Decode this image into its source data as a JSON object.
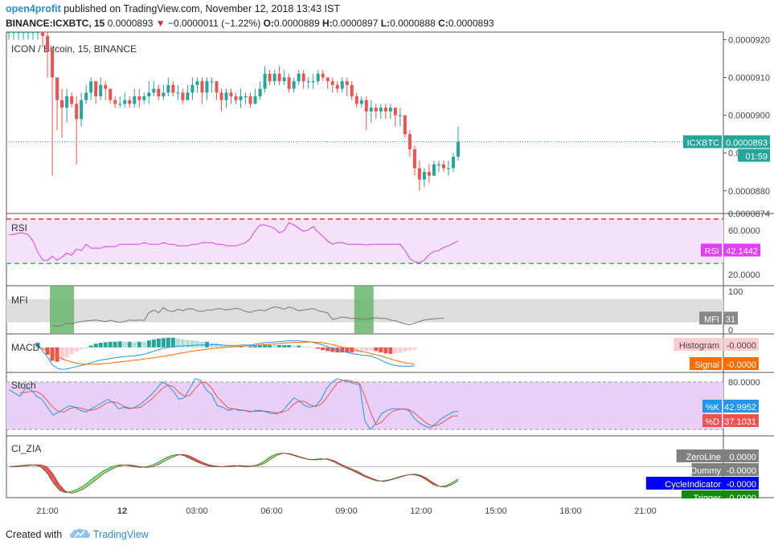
{
  "header": {
    "username": "open4profit",
    "published_text": "published on TradingView.com, November 12, 2018 13:43 IST",
    "symbol_line": "BINANCE:ICXBTC, 15",
    "price": "0.0000893",
    "arrow": "▼",
    "change": "−0.0000011 (−1.22%)",
    "o_label": "O:",
    "o_value": "0.0000889",
    "h_label": "H:",
    "h_value": "0.0000897",
    "l_label": "L:",
    "l_value": "0.0000888",
    "c_label": "C:",
    "c_value": "0.0000893"
  },
  "footer": {
    "created_with": "Created with",
    "brand": "TradingView"
  },
  "colors": {
    "up": "#26a69a",
    "down": "#ef5350",
    "rsi_line": "#e040fb",
    "rsi_band": "#f5e3fa",
    "mfi_band": "#dddddd",
    "mfi_highlight": "#6ab56a",
    "macd_line": "#2196f3",
    "signal_line": "#ff6d00",
    "stoch_k": "#2196f3",
    "stoch_d": "#ef5350",
    "stoch_band": "#ead0f7",
    "cycle_green": "#7ef07e",
    "cycle_red": "#ef5350"
  },
  "chart_data": [
    {
      "type": "candlestick",
      "title": "ICON / Bitcoin, 15, BINANCE",
      "ylim": [
        8.74e-05,
        9.22e-05
      ],
      "y_ticks": [
        "0.0000920",
        "0.0000910",
        "0.0000900",
        "0.0000890",
        "0.0000880",
        "0.0000874"
      ],
      "last_price_label": "ICXBTC",
      "last_price_value": "0.0000893",
      "countdown": "01:59",
      "x_ticks": [
        "21:00",
        "12",
        "03:00",
        "06:00",
        "09:00",
        "12:00",
        "15:00",
        "18:00",
        "21:00"
      ],
      "closes": [
        9.22e-05,
        9.22e-05,
        9.22e-05,
        9.22e-05,
        9.22e-05,
        9.22e-05,
        9.22e-05,
        9.21e-05,
        9.17e-05,
        9.1e-05,
        9.04e-05,
        9.02e-05,
        9.05e-05,
        9.03e-05,
        8.99e-05,
        9.04e-05,
        9.06e-05,
        9.09e-05,
        9.05e-05,
        9.08e-05,
        9.07e-05,
        9.04e-05,
        9.03e-05,
        9.03e-05,
        9.04e-05,
        9.03e-05,
        9.05e-05,
        9.04e-05,
        9.05e-05,
        9.06e-05,
        9.07e-05,
        9.05e-05,
        9.06e-05,
        9.08e-05,
        9.06e-05,
        9.06e-05,
        9.04e-05,
        9.06e-05,
        9.08e-05,
        9.09e-05,
        9.06e-05,
        9.09e-05,
        9.09e-05,
        9.06e-05,
        9.04e-05,
        9.06e-05,
        9.05e-05,
        9.04e-05,
        9.05e-05,
        9.05e-05,
        9.03e-05,
        9.05e-05,
        9.07e-05,
        9.11e-05,
        9.09e-05,
        9.11e-05,
        9.09e-05,
        9.1e-05,
        9.07e-05,
        9.09e-05,
        9.11e-05,
        9.09e-05,
        9.09e-05,
        9.09e-05,
        9.11e-05,
        9.1e-05,
        9.09e-05,
        9.08e-05,
        9.07e-05,
        9.09e-05,
        9.08e-05,
        9.05e-05,
        9.03e-05,
        9.04e-05,
        9.01e-05,
        9.02e-05,
        9.01e-05,
        9.02e-05,
        9.01e-05,
        9.02e-05,
        9e-05,
        9e-05,
        8.95e-05,
        8.91e-05,
        8.86e-05,
        8.83e-05,
        8.85e-05,
        8.84e-05,
        8.87e-05,
        8.87e-05,
        8.86e-05,
        8.86e-05,
        8.89e-05,
        8.93e-05
      ],
      "highs": [
        9.22e-05,
        9.22e-05,
        9.22e-05,
        9.22e-05,
        9.22e-05,
        9.22e-05,
        9.22e-05,
        9.22e-05,
        9.22e-05,
        9.18e-05,
        9.06e-05,
        9.07e-05,
        9.07e-05,
        9.06e-05,
        9.05e-05,
        9.06e-05,
        9.08e-05,
        9.1e-05,
        9.09e-05,
        9.1e-05,
        9.09e-05,
        9.07e-05,
        9.05e-05,
        9.05e-05,
        9.06e-05,
        9.05e-05,
        9.07e-05,
        9.07e-05,
        9.06e-05,
        9.09e-05,
        9.09e-05,
        9.08e-05,
        9.08e-05,
        9.1e-05,
        9.09e-05,
        9.08e-05,
        9.07e-05,
        9.08e-05,
        9.1e-05,
        9.1e-05,
        9.1e-05,
        9.1e-05,
        9.1e-05,
        9.09e-05,
        9.07e-05,
        9.07e-05,
        9.07e-05,
        9.06e-05,
        9.07e-05,
        9.06e-05,
        9.06e-05,
        9.07e-05,
        9.09e-05,
        9.13e-05,
        9.12e-05,
        9.12e-05,
        9.13e-05,
        9.12e-05,
        9.11e-05,
        9.1e-05,
        9.12e-05,
        9.12e-05,
        9.1e-05,
        9.11e-05,
        9.12e-05,
        9.12e-05,
        9.1e-05,
        9.1e-05,
        9.09e-05,
        9.1e-05,
        9.1e-05,
        9.09e-05,
        9.06e-05,
        9.05e-05,
        9.05e-05,
        9.04e-05,
        9.03e-05,
        9.03e-05,
        9.03e-05,
        9.03e-05,
        9.02e-05,
        9.02e-05,
        9e-05,
        8.96e-05,
        8.92e-05,
        8.88e-05,
        8.86e-05,
        8.87e-05,
        8.88e-05,
        8.88e-05,
        8.88e-05,
        8.88e-05,
        8.9e-05,
        8.97e-05
      ],
      "lows": [
        9.2e-05,
        9.2e-05,
        9.2e-05,
        9.2e-05,
        9.2e-05,
        9.2e-05,
        9.2e-05,
        9.18e-05,
        9.1e-05,
        8.84e-05,
        8.96e-05,
        8.94e-05,
        8.98e-05,
        9.02e-05,
        8.87e-05,
        8.97e-05,
        9.03e-05,
        9.04e-05,
        9.03e-05,
        9.04e-05,
        9.04e-05,
        9.03e-05,
        9.02e-05,
        9.02e-05,
        9.02e-05,
        9.02e-05,
        9.02e-05,
        9.02e-05,
        9.03e-05,
        9.03e-05,
        9.05e-05,
        9.04e-05,
        9.04e-05,
        9.05e-05,
        9.05e-05,
        9.04e-05,
        9.03e-05,
        9.04e-05,
        9.04e-05,
        9.06e-05,
        9.03e-05,
        9.04e-05,
        9.06e-05,
        9.04e-05,
        9.01e-05,
        9.02e-05,
        9.03e-05,
        9.03e-05,
        9.02e-05,
        9.03e-05,
        9.02e-05,
        9.03e-05,
        9.04e-05,
        9.06e-05,
        9.08e-05,
        9.08e-05,
        9.08e-05,
        9.08e-05,
        9.06e-05,
        9.06e-05,
        9.08e-05,
        9.07e-05,
        9.07e-05,
        9.07e-05,
        9.08e-05,
        9.09e-05,
        9.07e-05,
        9.06e-05,
        9.06e-05,
        9.06e-05,
        9.05e-05,
        9.04e-05,
        9.02e-05,
        9.02e-05,
        8.96e-05,
        8.98e-05,
        8.99e-05,
        8.99e-05,
        8.99e-05,
        8.99e-05,
        8.97e-05,
        8.97e-05,
        8.94e-05,
        8.89e-05,
        8.84e-05,
        8.8e-05,
        8.81e-05,
        8.82e-05,
        8.84e-05,
        8.85e-05,
        8.85e-05,
        8.84e-05,
        8.85e-05,
        8.88e-05
      ]
    },
    {
      "type": "line",
      "name": "RSI",
      "label": "RSI",
      "value_label": "42.1442",
      "ylim": [
        10,
        75
      ],
      "y_ticks": [
        "60.0000",
        "20.0000"
      ],
      "overbought": 70,
      "oversold": 30,
      "values": [
        50,
        50,
        52,
        52,
        50,
        42,
        28,
        18,
        18,
        23,
        18,
        22,
        27,
        24,
        32,
        30,
        38,
        33,
        33,
        33,
        35,
        35,
        35,
        38,
        38,
        38,
        38,
        38,
        40,
        38,
        38,
        38,
        40,
        38,
        38,
        36,
        36,
        36,
        38,
        38,
        40,
        40,
        40,
        38,
        38,
        36,
        36,
        36,
        38,
        40,
        45,
        55,
        62,
        62,
        60,
        58,
        52,
        55,
        65,
        62,
        58,
        54,
        56,
        60,
        53,
        48,
        42,
        38,
        40,
        40,
        38,
        38,
        38,
        38,
        37,
        38,
        38,
        38,
        38,
        38,
        38,
        38,
        30,
        20,
        16,
        15,
        18,
        25,
        29,
        30,
        34,
        36,
        39,
        42
      ]
    },
    {
      "type": "line",
      "name": "MFI",
      "label": "MFI",
      "value_label": "31",
      "ylim": [
        -10,
        115
      ],
      "y_ticks": [
        "100",
        "0"
      ],
      "band": [
        20,
        80
      ],
      "highlight_ranges": [
        [
          9,
          13
        ],
        [
          72,
          75
        ]
      ],
      "values": [
        null,
        null,
        null,
        null,
        null,
        null,
        null,
        null,
        null,
        12,
        10,
        12,
        18,
        16,
        20,
        22,
        24,
        25,
        26,
        24,
        22,
        25,
        22,
        20,
        22,
        26,
        25,
        26,
        25,
        45,
        52,
        45,
        58,
        50,
        48,
        54,
        50,
        55,
        55,
        50,
        48,
        52,
        52,
        55,
        55,
        52,
        54,
        56,
        54,
        48,
        46,
        50,
        52,
        50,
        56,
        60,
        58,
        54,
        60,
        56,
        50,
        52,
        54,
        56,
        50,
        48,
        44,
        28,
        30,
        34,
        32,
        30,
        30,
        28,
        28,
        30,
        32,
        30,
        30,
        26,
        24,
        20,
        16,
        14,
        18,
        22,
        26,
        28,
        29,
        30,
        31
      ],
      "_sparse_note": ""
    },
    {
      "type": "bar-line",
      "name": "MACD",
      "label": "MACD",
      "ylim": [
        -6.5,
        3.5
      ],
      "histogram_label": "Histogram",
      "histogram_value": "-0.0000",
      "signal_label": "Signal",
      "signal_value": "-0.0000",
      "macd": [
        null,
        null,
        null,
        null,
        null,
        null,
        1,
        -1,
        -2.5,
        -4.5,
        -5.4,
        -5.7,
        -5.6,
        -5.3,
        -5.0,
        -4.7,
        -4.4,
        -4.0,
        -3.6,
        -3.3,
        -3.1,
        -2.9,
        -2.7,
        -2.5,
        -2.4,
        -2.3,
        -2.2,
        -2.0,
        -1.8,
        -1.4,
        -1.0,
        -0.6,
        -0.3,
        0.0,
        0.2,
        0.3,
        0.4,
        0.4,
        0.5,
        0.6,
        0.6,
        0.7,
        0.7,
        0.7,
        0.6,
        0.5,
        0.5,
        0.5,
        0.6,
        0.6,
        0.6,
        0.8,
        1.0,
        1.2,
        1.3,
        1.4,
        1.5,
        1.6,
        1.7,
        1.7,
        1.7,
        1.6,
        1.5,
        1.3,
        1.0,
        0.6,
        0.2,
        -0.3,
        -0.7,
        -1.0,
        -1.3,
        -1.6,
        -1.8,
        -2.0,
        -2.1,
        -2.3,
        -2.7,
        -3.3,
        -3.9,
        -4.4,
        -4.7,
        -4.9,
        -4.9,
        -4.9,
        -4.8
      ],
      "signal": [
        null,
        null,
        null,
        null,
        null,
        null,
        0,
        -0.3,
        -0.9,
        -1.6,
        -2.3,
        -2.9,
        -3.4,
        -3.8,
        -4.1,
        -4.3,
        -4.4,
        -4.4,
        -4.4,
        -4.3,
        -4.2,
        -4.1,
        -3.9,
        -3.8,
        -3.6,
        -3.5,
        -3.3,
        -3.2,
        -3.0,
        -2.9,
        -2.7,
        -2.5,
        -2.3,
        -2.1,
        -1.9,
        -1.6,
        -1.4,
        -1.2,
        -1.0,
        -0.8,
        -0.6,
        -0.5,
        -0.3,
        -0.2,
        -0.1,
        0.0,
        0.1,
        0.2,
        0.3,
        0.4,
        0.4,
        0.5,
        0.6,
        0.7,
        0.8,
        0.9,
        1.0,
        1.1,
        1.2,
        1.3,
        1.3,
        1.4,
        1.4,
        1.4,
        1.3,
        1.2,
        1.0,
        0.7,
        0.4,
        0.1,
        -0.2,
        -0.5,
        -0.8,
        -1.1,
        -1.3,
        -1.6,
        -1.9,
        -2.2,
        -2.6,
        -3.0,
        -3.4,
        -3.7,
        -4.0,
        -4.2,
        -4.3
      ]
    },
    {
      "type": "line",
      "name": "Stoch",
      "label": "Stoch",
      "ylim": [
        12,
        92
      ],
      "y_ticks": [
        "80.0000"
      ],
      "upper": 80,
      "lower": 20,
      "k_label": "%K",
      "k_value": "42.9952",
      "d_label": "%D",
      "d_value": "37.1031",
      "k": [
        70,
        66,
        62,
        72,
        70,
        62,
        58,
        48,
        38,
        42,
        46,
        50,
        48,
        44,
        42,
        46,
        50,
        54,
        58,
        54,
        46,
        48,
        46,
        48,
        52,
        58,
        64,
        72,
        80,
        76,
        68,
        58,
        60,
        72,
        84,
        82,
        70,
        64,
        50,
        48,
        44,
        46,
        44,
        44,
        42,
        44,
        44,
        42,
        40,
        40,
        44,
        52,
        60,
        56,
        50,
        48,
        50,
        58,
        72,
        80,
        84,
        82,
        80,
        78,
        76,
        30,
        20,
        28,
        40,
        44,
        46,
        46,
        46,
        44,
        34,
        28,
        24,
        22,
        28,
        34,
        38,
        42,
        43
      ],
      "d": [
        null,
        null,
        66,
        67,
        68,
        68,
        64,
        56,
        48,
        43,
        42,
        46,
        48,
        47,
        45,
        44,
        46,
        50,
        54,
        55,
        53,
        49,
        47,
        47,
        48,
        53,
        58,
        65,
        72,
        76,
        74,
        67,
        62,
        63,
        72,
        79,
        79,
        72,
        61,
        54,
        47,
        46,
        45,
        44,
        43,
        43,
        43,
        43,
        42,
        41,
        42,
        45,
        52,
        56,
        55,
        51,
        49,
        52,
        60,
        70,
        79,
        82,
        82,
        80,
        78,
        61,
        42,
        26,
        29,
        37,
        43,
        45,
        46,
        45,
        41,
        35,
        29,
        25,
        25,
        28,
        33,
        37,
        37
      ]
    },
    {
      "type": "area-line",
      "name": "CI_ZIA",
      "label": "CI_ZIA",
      "ylim": [
        -5,
        5
      ],
      "legend": [
        {
          "label": "ZeroLine",
          "value": "0.0000",
          "color": "#808080"
        },
        {
          "label": "Dummy",
          "value": "-0.0000",
          "color": "#808080"
        },
        {
          "label": "CycleIndicator",
          "value": "-0.0000",
          "color": "#0000ff"
        },
        {
          "label": "Trigger",
          "value": "-0.0000",
          "color": "#138a13"
        }
      ],
      "cycle": [
        0,
        0.1,
        0.2,
        0.3,
        0.3,
        0.0,
        -1.0,
        -2.6,
        -3.8,
        -4.2,
        -4.0,
        -3.6,
        -3.0,
        -2.2,
        -1.4,
        -0.7,
        -0.2,
        0.2,
        0.3,
        0.2,
        0.0,
        -0.1,
        0.0,
        0.3,
        0.8,
        1.4,
        1.8,
        2.0,
        1.8,
        1.3,
        0.8,
        0.4,
        0.1,
        0.0,
        0.0,
        0.1,
        0.2,
        0.1,
        0.0,
        0.1,
        0.4,
        1.0,
        1.7,
        2.1,
        2.2,
        2.0,
        1.7,
        1.4,
        1.2,
        1.2,
        1.3,
        1.2,
        0.8,
        0.3,
        -0.2,
        -0.6,
        -1.1,
        -1.6,
        -2.0,
        -2.3,
        -2.3,
        -2.1,
        -1.8,
        -1.5,
        -1.3,
        -1.3,
        -1.6,
        -2.2,
        -2.9,
        -3.2,
        -3.1,
        -2.6,
        -2.0
      ],
      "trigger": [
        0,
        0,
        0.1,
        0.2,
        0.3,
        0.3,
        0.0,
        -1.2,
        -2.9,
        -4.0,
        -4.3,
        -4.0,
        -3.5,
        -2.8,
        -2.0,
        -1.2,
        -0.6,
        -0.1,
        0.2,
        0.3,
        0.2,
        0.0,
        -0.1,
        0.0,
        0.4,
        1.0,
        1.5,
        1.9,
        2.0,
        1.7,
        1.2,
        0.7,
        0.3,
        0.1,
        0.0,
        0.0,
        0.1,
        0.2,
        0.1,
        0.1,
        0.2,
        0.6,
        1.3,
        1.9,
        2.2,
        2.1,
        1.8,
        1.5,
        1.2,
        1.1,
        1.2,
        1.3,
        1.0,
        0.5,
        0.0,
        -0.4,
        -0.8,
        -1.4,
        -1.8,
        -2.2,
        -2.4,
        -2.2,
        -1.9,
        -1.6,
        -1.3,
        -1.2,
        -1.4,
        -1.9,
        -2.6,
        -3.2,
        -3.3,
        -2.9,
        -2.3
      ]
    }
  ]
}
